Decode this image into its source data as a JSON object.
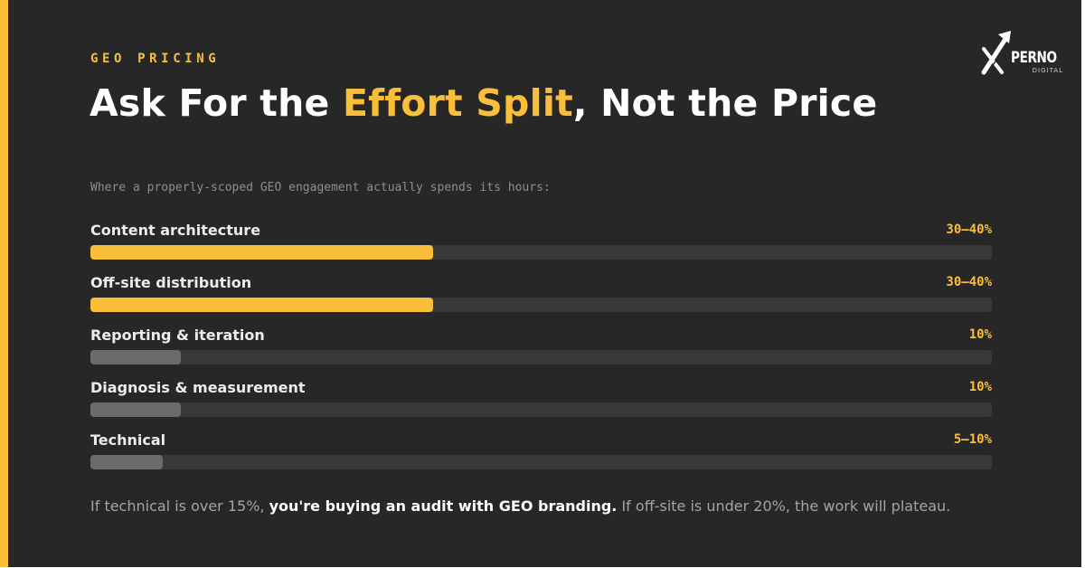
{
  "header": {
    "eyebrow": "GEO PRICING",
    "headline_before": "Ask For the ",
    "headline_highlight": "Effort Split",
    "headline_after": ", Not the Price"
  },
  "brand": {
    "name": "PERNO",
    "sub": "DIGITAL",
    "accent_color": "#f9bf3a",
    "background_color": "#272727"
  },
  "chart_data": {
    "type": "bar",
    "orientation": "horizontal",
    "title": "Where a properly-scoped GEO engagement actually spends its hours:",
    "categories": [
      "Content architecture",
      "Off-site distribution",
      "Reporting & iteration",
      "Diagnosis & measurement",
      "Technical"
    ],
    "value_labels": [
      "30–40%",
      "30–40%",
      "10%",
      "10%",
      "5–10%"
    ],
    "values": [
      0.38,
      0.38,
      0.1,
      0.1,
      0.08
    ],
    "emphasis": [
      "major",
      "major",
      "minor",
      "minor",
      "minor"
    ],
    "xlim": [
      0,
      1
    ],
    "grid": false,
    "legend": "none"
  },
  "footnote": {
    "part1": "If technical is over 15%, ",
    "bold": "you're buying an audit with GEO branding.",
    "part2": " If off-site is under 20%, the work will plateau."
  }
}
